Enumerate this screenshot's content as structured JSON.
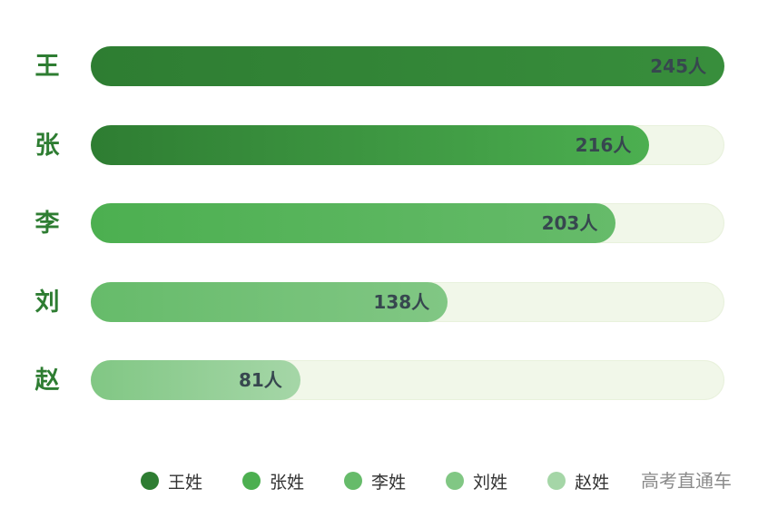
{
  "chart_data": {
    "type": "bar",
    "orientation": "horizontal",
    "categories": [
      "王",
      "张",
      "李",
      "刘",
      "赵"
    ],
    "values": [
      245,
      216,
      203,
      138,
      81
    ],
    "value_labels": [
      "245人",
      "216人",
      "203人",
      "138人",
      "81人"
    ],
    "xlim": [
      0,
      245
    ],
    "grid": false,
    "legend_placement": "bottom",
    "legend": [
      "王姓",
      "张姓",
      "李姓",
      "刘姓",
      "赵姓"
    ],
    "colors": [
      [
        "#2e7d32",
        "#388e3c"
      ],
      [
        "#2e7d32",
        "#4caf50"
      ],
      [
        "#4caf50",
        "#66bb6a"
      ],
      [
        "#66bb6a",
        "#81c784"
      ],
      [
        "#81c784",
        "#a5d6a7"
      ]
    ],
    "legend_colors": [
      "#2e7d32",
      "#4caf50",
      "#66bb6a",
      "#81c784",
      "#a5d6a7"
    ]
  },
  "watermark": "高考直通车"
}
